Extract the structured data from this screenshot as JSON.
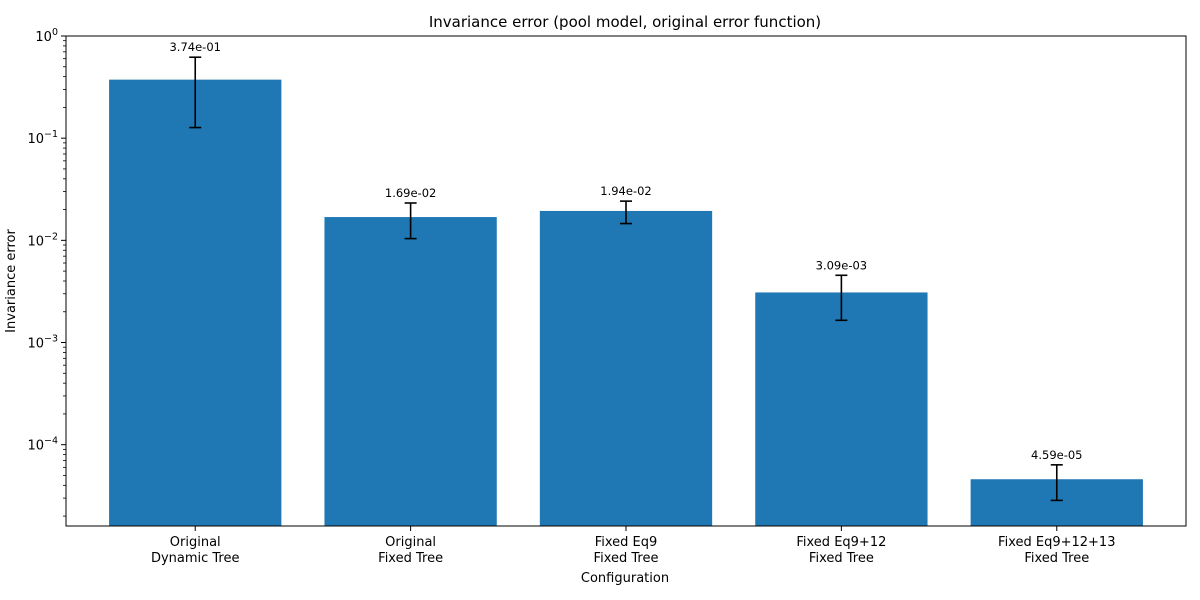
{
  "chart_data": {
    "type": "bar",
    "title": "Invariance error (pool model, original error function)",
    "xlabel": "Configuration",
    "ylabel": "Invariance error",
    "yscale": "log",
    "ylim": [
      1.6e-05,
      1.0
    ],
    "yticks": [
      {
        "value": 0.0001,
        "base": "10",
        "exp": "−4"
      },
      {
        "value": 0.001,
        "base": "10",
        "exp": "−3"
      },
      {
        "value": 0.01,
        "base": "10",
        "exp": "−2"
      },
      {
        "value": 0.1,
        "base": "10",
        "exp": "−1"
      },
      {
        "value": 1,
        "base": "10",
        "exp": "0"
      }
    ],
    "grid": false,
    "legend": "none",
    "bar_color": "#1f77b4",
    "error_color": "#000000",
    "categories": [
      [
        "Original",
        "Dynamic Tree"
      ],
      [
        "Original",
        "Fixed Tree"
      ],
      [
        "Fixed Eq9",
        "Fixed Tree"
      ],
      [
        "Fixed Eq9+12",
        "Fixed Tree"
      ],
      [
        "Fixed Eq9+12+13",
        "Fixed Tree"
      ]
    ],
    "values": [
      0.374,
      0.0169,
      0.0194,
      0.00309,
      4.59e-05
    ],
    "error_low": [
      0.127,
      0.0104,
      0.0146,
      0.00165,
      2.85e-05
    ],
    "error_high": [
      0.62,
      0.0232,
      0.0242,
      0.00455,
      6.35e-05
    ],
    "data_labels": [
      "3.74e-01",
      "1.69e-02",
      "1.94e-02",
      "3.09e-03",
      "4.59e-05"
    ]
  }
}
